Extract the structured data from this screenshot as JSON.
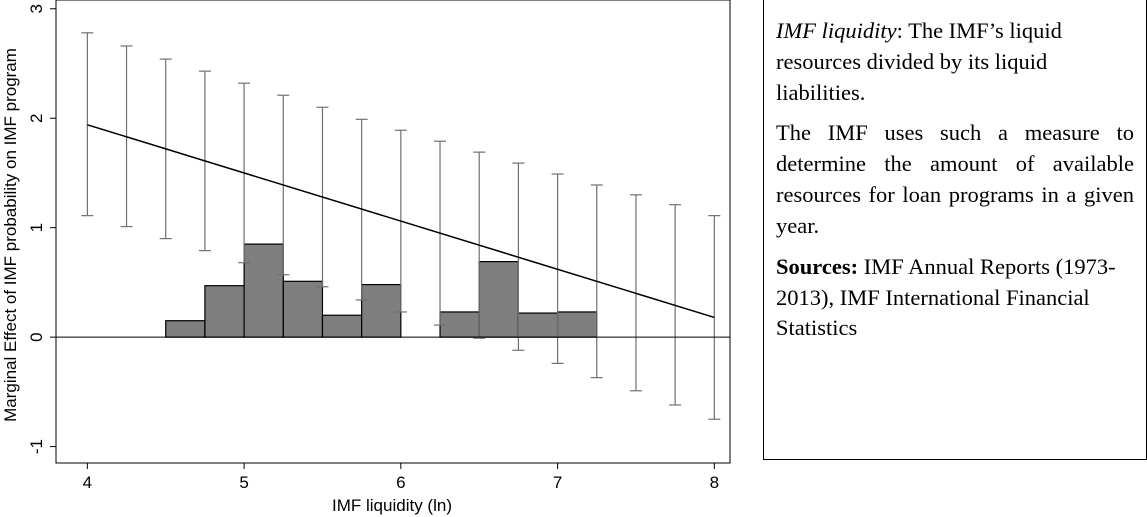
{
  "chart_data": {
    "type": "line",
    "xlabel": "IMF liquidity (ln)",
    "ylabel": "Marginal Effect of IMF probability on IMF program",
    "xlim": [
      3.8,
      8.1
    ],
    "ylim": [
      -1.15,
      3.08
    ],
    "xticks": [
      "4",
      "5",
      "6",
      "7",
      "8"
    ],
    "xtick_values": [
      4,
      5,
      6,
      7,
      8
    ],
    "yticks": [
      "-1",
      "0",
      "1",
      "2",
      "3"
    ],
    "ytick_values": [
      -1,
      0,
      1,
      2,
      3
    ],
    "grid": false,
    "reference_line_y": 0,
    "marginal_effect_line": {
      "x": [
        4,
        8
      ],
      "y": [
        1.94,
        0.18
      ]
    },
    "confidence_intervals": [
      {
        "x": 4.0,
        "lower": 1.11,
        "upper": 2.78
      },
      {
        "x": 4.25,
        "lower": 1.01,
        "upper": 2.66
      },
      {
        "x": 4.5,
        "lower": 0.9,
        "upper": 2.54
      },
      {
        "x": 4.75,
        "lower": 0.79,
        "upper": 2.43
      },
      {
        "x": 5.0,
        "lower": 0.68,
        "upper": 2.32
      },
      {
        "x": 5.25,
        "lower": 0.57,
        "upper": 2.21
      },
      {
        "x": 5.5,
        "lower": 0.46,
        "upper": 2.1
      },
      {
        "x": 5.75,
        "lower": 0.34,
        "upper": 1.99
      },
      {
        "x": 6.0,
        "lower": 0.23,
        "upper": 1.89
      },
      {
        "x": 6.25,
        "lower": 0.11,
        "upper": 1.79
      },
      {
        "x": 6.5,
        "lower": -0.01,
        "upper": 1.69
      },
      {
        "x": 6.75,
        "lower": -0.12,
        "upper": 1.59
      },
      {
        "x": 7.0,
        "lower": -0.24,
        "upper": 1.49
      },
      {
        "x": 7.25,
        "lower": -0.37,
        "upper": 1.39
      },
      {
        "x": 7.5,
        "lower": -0.49,
        "upper": 1.3
      },
      {
        "x": 7.75,
        "lower": -0.62,
        "upper": 1.21
      },
      {
        "x": 8.0,
        "lower": -0.75,
        "upper": 1.11
      }
    ],
    "histogram": [
      {
        "x0": 4.5,
        "x1": 4.75,
        "height": 0.15
      },
      {
        "x0": 4.75,
        "x1": 5.0,
        "height": 0.47
      },
      {
        "x0": 5.0,
        "x1": 5.25,
        "height": 0.85
      },
      {
        "x0": 5.25,
        "x1": 5.5,
        "height": 0.51
      },
      {
        "x0": 5.5,
        "x1": 5.75,
        "height": 0.2
      },
      {
        "x0": 5.75,
        "x1": 6.0,
        "height": 0.48
      },
      {
        "x0": 6.25,
        "x1": 6.5,
        "height": 0.23
      },
      {
        "x0": 6.5,
        "x1": 6.75,
        "height": 0.69
      },
      {
        "x0": 6.75,
        "x1": 7.0,
        "height": 0.22
      },
      {
        "x0": 7.0,
        "x1": 7.25,
        "height": 0.23
      }
    ],
    "colors": {
      "line": "#000000",
      "ci": "#707070",
      "bars": "#7f7f7f",
      "bar_edge": "#000000"
    }
  },
  "note": {
    "definition_term": "IMF liquidity",
    "definition_text": ": The IMF’s liquid resources divided by its liquid liabilities.",
    "explanation": "The IMF uses such a measure to determine the amount of available resources for loan programs in a given year.",
    "sources_label": "Sources:",
    "sources_text": " IMF Annual Reports (1973-2013), IMF International Financial Statistics"
  }
}
